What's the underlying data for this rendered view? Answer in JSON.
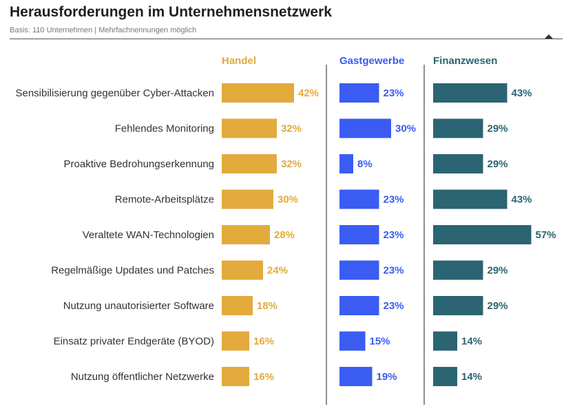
{
  "chart_data": {
    "type": "bar",
    "title": "Herausforderungen im Unternehmensnetzwerk",
    "subtitle": "Basis: 110 Unternehmen | Mehrfachnennungen möglich",
    "categories": [
      "Sensibilisierung gegenüber Cyber-Attacken",
      "Fehlendes Monitoring",
      "Proaktive Bedrohungserkennung",
      "Remote-Arbeitsplätze",
      "Veraltete WAN-Technologien",
      "Regelmäßige Updates und Patches",
      "Nutzung unautorisierter Software",
      "Einsatz privater Endgeräte (BYOD)",
      "Nutzung öffentlicher Netzwerke"
    ],
    "series": [
      {
        "name": "Handel",
        "color": "#e3aa3c",
        "values": [
          42,
          32,
          32,
          30,
          28,
          24,
          18,
          16,
          16
        ]
      },
      {
        "name": "Gastgewerbe",
        "color": "#3a5cf2",
        "values": [
          23,
          30,
          8,
          23,
          23,
          23,
          23,
          15,
          19
        ]
      },
      {
        "name": "Finanzwesen",
        "color": "#2b6472",
        "values": [
          43,
          29,
          29,
          43,
          57,
          29,
          29,
          14,
          14
        ]
      }
    ],
    "unit": "%",
    "grid": false,
    "legend": "column-headers"
  }
}
